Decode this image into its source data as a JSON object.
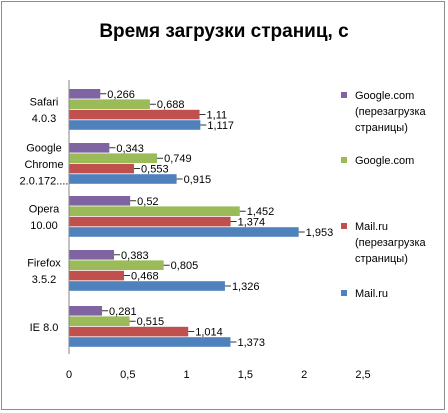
{
  "chart_data": {
    "type": "bar",
    "orientation": "horizontal",
    "title": "Время загрузки страниц, с",
    "xlabel": "",
    "ylabel": "",
    "categories": [
      "IE 8.0",
      "Firefox 3.5.2",
      "Opera 10.00",
      "Google Chrome 2.0.172....",
      "Safari 4.0.3"
    ],
    "category_lines": [
      [
        "IE 8.0"
      ],
      [
        "Firefox",
        "3.5.2"
      ],
      [
        "Opera",
        "10.00"
      ],
      [
        "Google",
        "Chrome",
        "2.0.172...."
      ],
      [
        "Safari",
        "4.0.3"
      ]
    ],
    "series": [
      {
        "name": "Mail.ru",
        "color": "#4f81bd",
        "values": [
          1.373,
          1.326,
          1.953,
          0.915,
          1.117
        ],
        "labels": [
          "1,373",
          "1,326",
          "1,953",
          "0,915",
          "1,117"
        ]
      },
      {
        "name": "Mail.ru (перезагрузка страницы)",
        "legend_lines": [
          "Mail.ru",
          "(перезагрузка",
          "страницы)"
        ],
        "color": "#c0504d",
        "values": [
          1.014,
          0.468,
          1.374,
          0.553,
          1.11
        ],
        "labels": [
          "1,014",
          "0,468",
          "1,374",
          "0,553",
          "1,11"
        ]
      },
      {
        "name": "Google.com",
        "color": "#9bbb59",
        "values": [
          0.515,
          0.805,
          1.452,
          0.749,
          0.688
        ],
        "labels": [
          "0,515",
          "0,805",
          "1,452",
          "0,749",
          "0,688"
        ]
      },
      {
        "name": "Google.com (перезагрузка страницы)",
        "legend_lines": [
          "Google.com",
          "(перезагрузка",
          "страницы)"
        ],
        "color": "#8064a2",
        "values": [
          0.281,
          0.383,
          0.52,
          0.343,
          0.266
        ],
        "labels": [
          "0,281",
          "0,383",
          "0,52",
          "0,343",
          "0,266"
        ]
      }
    ],
    "xlim": [
      0,
      2.5
    ],
    "xticks": [
      0,
      0.5,
      1,
      1.5,
      2,
      2.5
    ],
    "xtick_labels": [
      "0",
      "0,5",
      "1",
      "1,5",
      "2",
      "2,5"
    ],
    "grid": false,
    "legend_position": "right",
    "legend_order": [
      3,
      2,
      1,
      0
    ]
  }
}
